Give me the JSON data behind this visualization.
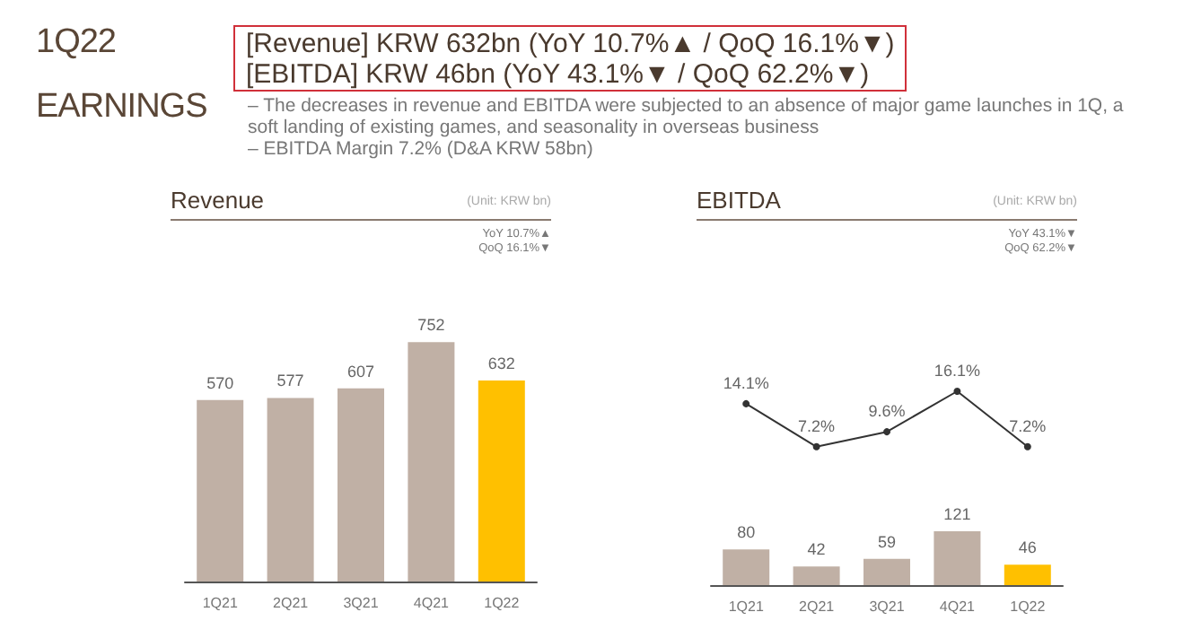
{
  "chart_data": [
    {
      "type": "other",
      "title": "1Q22 EARNINGS",
      "annotations": [
        "[Revenue] KRW 632bn (YoY 10.7%▲ / QoQ 16.1%▼)",
        "[EBITDA] KRW 46bn (YoY 43.1%▼ / QoQ 62.2%▼)",
        "–  The decreases in revenue and EBITDA were subjected to an absence of major game launches in 1Q, a soft landing of existing games, and seasonality in overseas business",
        "–  EBITDA Margin 7.2% (D&A KRW 58bn)"
      ]
    },
    {
      "type": "bar",
      "title": "Revenue",
      "annotations": [
        "(Unit: KRW bn)",
        "YoY 10.7%▲",
        "QoQ 16.1%▼"
      ],
      "categories": [
        "1Q21",
        "2Q21",
        "3Q21",
        "4Q21",
        "1Q22"
      ],
      "values": [
        570,
        577,
        607,
        752,
        632
      ],
      "colors": [
        "#c0b0a5",
        "#c0b0a5",
        "#c0b0a5",
        "#c0b0a5",
        "#ffc000"
      ],
      "data_labels": true,
      "tick_labels": "x"
    },
    {
      "type": "line",
      "title": "EBITDA",
      "annotations": [
        "(Unit: KRW bn)",
        "YoY 43.1%▼",
        "QoQ 62.2%▼"
      ],
      "categories": [
        null,
        null,
        null,
        null,
        null
      ],
      "values": [
        14.1,
        7.2,
        9.6,
        16.1,
        7.2
      ],
      "value_labels": [
        "14.1%",
        "7.2%",
        "9.6%",
        "16.1%",
        "7.2%"
      ],
      "color": "#333333",
      "marker": "circle",
      "tick_labels": false
    },
    {
      "type": "bar",
      "categories": [
        "1Q21",
        "2Q21",
        "3Q21",
        "4Q21",
        "1Q22"
      ],
      "values": [
        80,
        42,
        59,
        121,
        46
      ],
      "colors": [
        "#c0b0a5",
        "#c0b0a5",
        "#c0b0a5",
        "#c0b0a5",
        "#ffc000"
      ],
      "data_labels": true,
      "tick_labels": "x"
    }
  ]
}
